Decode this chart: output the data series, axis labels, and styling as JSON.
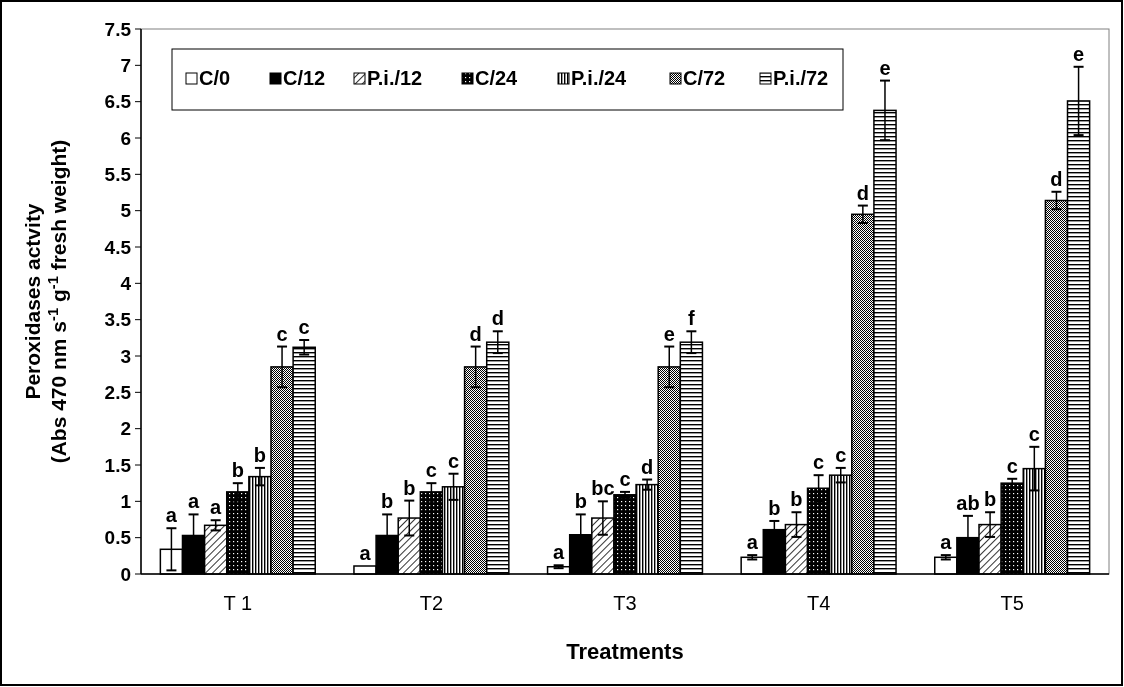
{
  "chart_data": {
    "type": "bar",
    "xlabel": "Treatments",
    "ylabel": "Peroxidases actvity\n(Abs 470 nm s$^{-1}$ g$^{-1}$ fresh weight)",
    "categories": [
      "T 1",
      "T2",
      "T3",
      "T4",
      "T5"
    ],
    "ylim": [
      0,
      7.5
    ],
    "yticks": [
      {
        "value": 0,
        "label": "0"
      },
      {
        "value": 0.5,
        "label": "0.5"
      },
      {
        "value": 1,
        "label": "1"
      },
      {
        "value": 1.5,
        "label": "1.5"
      },
      {
        "value": 2,
        "label": "2"
      },
      {
        "value": 2.5,
        "label": "2.5"
      },
      {
        "value": 3,
        "label": "3"
      },
      {
        "value": 3.5,
        "label": "3.5"
      },
      {
        "value": 4,
        "label": "4"
      },
      {
        "value": 4.5,
        "label": "4.5"
      },
      {
        "value": 5,
        "label": "5"
      },
      {
        "value": 5.5,
        "label": "5.5"
      },
      {
        "value": 6,
        "label": "6"
      },
      {
        "value": 6.5,
        "label": "6.5"
      },
      {
        "value": 7,
        "label": "7"
      },
      {
        "value": 7.5,
        "label": "7.5"
      }
    ],
    "legend": "top",
    "grid": false,
    "series": [
      {
        "name": "C/0",
        "color": "#ffffff",
        "values": [
          0.34,
          0.11,
          0.1,
          0.23,
          0.23
        ],
        "errors": [
          0.29,
          null,
          0.02,
          0.03,
          0.03
        ],
        "value_labels": [
          "a",
          "a",
          "a",
          "a",
          "a"
        ]
      },
      {
        "name": "C/12",
        "color": "#000000",
        "values": [
          0.53,
          0.53,
          0.54,
          0.61,
          0.5
        ],
        "errors": [
          0.29,
          0.29,
          0.28,
          0.12,
          0.3
        ],
        "value_labels": [
          "a",
          "b",
          "b",
          "b",
          "ab"
        ]
      },
      {
        "name": "P.i./12",
        "color": "#000000",
        "values": [
          0.67,
          0.77,
          0.77,
          0.68,
          0.68
        ],
        "errors": [
          0.07,
          0.24,
          0.23,
          0.17,
          0.17
        ],
        "value_labels": [
          "a",
          "b",
          "bc",
          "b",
          "b"
        ]
      },
      {
        "name": "C/24",
        "color": "#000000",
        "values": [
          1.13,
          1.13,
          1.09,
          1.18,
          1.25
        ],
        "errors": [
          0.12,
          0.12,
          0.04,
          0.18,
          0.06
        ],
        "value_labels": [
          "b",
          "c",
          "c",
          "c",
          "c"
        ]
      },
      {
        "name": "P.i./24",
        "color": "#000000",
        "values": [
          1.34,
          1.2,
          1.23,
          1.36,
          1.45
        ],
        "errors": [
          0.12,
          0.18,
          0.07,
          0.1,
          0.3
        ],
        "value_labels": [
          "b",
          "c",
          "d",
          "c",
          "c"
        ]
      },
      {
        "name": "C/72",
        "color": "#000000",
        "values": [
          2.85,
          2.85,
          2.85,
          4.95,
          5.14
        ],
        "errors": [
          0.28,
          0.28,
          0.28,
          0.12,
          0.12
        ],
        "value_labels": [
          "c",
          "d",
          "e",
          "d",
          "d"
        ]
      },
      {
        "name": "P.i./72",
        "color": "#000000",
        "values": [
          3.12,
          3.19,
          3.19,
          6.38,
          6.51
        ],
        "errors": [
          0.1,
          0.15,
          0.15,
          0.41,
          0.47
        ],
        "value_labels": [
          "c",
          "d",
          "f",
          "e",
          "e"
        ]
      }
    ]
  }
}
